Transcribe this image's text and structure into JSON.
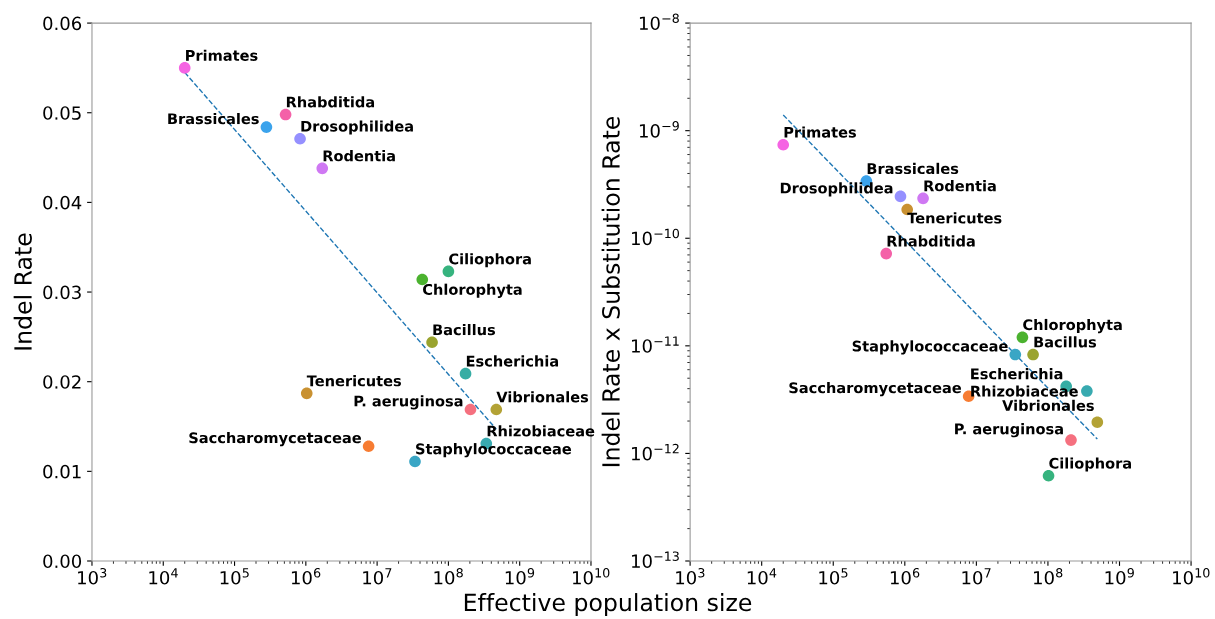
{
  "chart_data": [
    {
      "type": "scatter",
      "xlabel": "Effective population size",
      "ylabel": "Indel Rate",
      "log": "x",
      "grid": false,
      "marker": "circle",
      "xlim": [
        1000,
        10000000000
      ],
      "xticks": [
        {
          "value": 1000,
          "label": "10$^{3}$"
        },
        {
          "value": 10000,
          "label": "10$^{4}$"
        },
        {
          "value": 100000,
          "label": "10$^{5}$"
        },
        {
          "value": 1000000,
          "label": "10$^{6}$"
        },
        {
          "value": 10000000,
          "label": "10$^{7}$"
        },
        {
          "value": 100000000,
          "label": "10$^{8}$"
        },
        {
          "value": 1000000000,
          "label": "10$^{9}$"
        },
        {
          "value": 10000000000,
          "label": "10$^{10}$"
        }
      ],
      "ylim": [
        0,
        0.06
      ],
      "yticks": [
        {
          "value": 0,
          "label": "0.00"
        },
        {
          "value": 0.01,
          "label": "0.01"
        },
        {
          "value": 0.02,
          "label": "0.02"
        },
        {
          "value": 0.03,
          "label": "0.03"
        },
        {
          "value": 0.04,
          "label": "0.04"
        },
        {
          "value": 0.05,
          "label": "0.05"
        },
        {
          "value": 0.06,
          "label": "0.06"
        }
      ],
      "series": [
        {
          "name": "Primates",
          "color": "#f564e3",
          "x": [
            20000
          ],
          "values": [
            0.055
          ]
        },
        {
          "name": "Brassicales",
          "color": "#3ba3ec",
          "x": [
            280000
          ],
          "values": [
            0.0484
          ]
        },
        {
          "name": "Rhabditida",
          "color": "#f461a8",
          "x": [
            520000
          ],
          "values": [
            0.0498
          ]
        },
        {
          "name": "Drosophilidea",
          "color": "#9590ff",
          "x": [
            830000
          ],
          "values": [
            0.0471
          ]
        },
        {
          "name": "Rodentia",
          "color": "#cf78f3",
          "x": [
            1700000
          ],
          "values": [
            0.0438
          ]
        },
        {
          "name": "Ciliophora",
          "color": "#36b37e",
          "x": [
            100000000
          ],
          "values": [
            0.0323
          ]
        },
        {
          "name": "Chlorophyta",
          "color": "#4bb22f",
          "x": [
            43000000
          ],
          "values": [
            0.0314
          ]
        },
        {
          "name": "Bacillus",
          "color": "#9aa42f",
          "x": [
            59000000
          ],
          "values": [
            0.0244
          ]
        },
        {
          "name": "Escherichia",
          "color": "#36ada4",
          "x": [
            174000000
          ],
          "values": [
            0.0209
          ]
        },
        {
          "name": "Tenericutes",
          "color": "#c99131",
          "x": [
            1030000
          ],
          "values": [
            0.0187
          ]
        },
        {
          "name": "P. aeruginosa",
          "color": "#f5707f",
          "x": [
            204000000
          ],
          "values": [
            0.0169
          ]
        },
        {
          "name": "Vibrionales",
          "color": "#b3a235",
          "x": [
            470000000
          ],
          "values": [
            0.0169
          ]
        },
        {
          "name": "Saccharomycetaceae",
          "color": "#f77c32",
          "x": [
            7600000
          ],
          "values": [
            0.0128
          ]
        },
        {
          "name": "Rhizobiaceae",
          "color": "#38aab0",
          "x": [
            340000000
          ],
          "values": [
            0.0131
          ]
        },
        {
          "name": "Staphylococcaceae",
          "color": "#3aa6c5",
          "x": [
            34000000
          ],
          "values": [
            0.0111
          ]
        },
        {
          "type": "line",
          "color": "#1f77b4",
          "line_style": "dashed",
          "marker": "none",
          "x": [
            20000,
            470000000
          ],
          "values": [
            0.0545,
            0.0147
          ]
        }
      ]
    },
    {
      "type": "scatter",
      "ylabel": "Indel Rate x Substitution Rate",
      "log": "xy",
      "grid": false,
      "marker": "circle",
      "xlim": [
        1000,
        10000000000
      ],
      "xticks": [
        {
          "value": 1000,
          "label": "10$^{3}$"
        },
        {
          "value": 10000,
          "label": "10$^{4}$"
        },
        {
          "value": 100000,
          "label": "10$^{5}$"
        },
        {
          "value": 1000000,
          "label": "10$^{6}$"
        },
        {
          "value": 10000000,
          "label": "10$^{7}$"
        },
        {
          "value": 100000000,
          "label": "10$^{8}$"
        },
        {
          "value": 1000000000,
          "label": "10$^{9}$"
        },
        {
          "value": 10000000000,
          "label": "10$^{10}$"
        }
      ],
      "ylim": [
        1e-13,
        1e-08
      ],
      "yticks": [
        {
          "value": 1e-13,
          "label": "10$^{−13}$"
        },
        {
          "value": 1e-12,
          "label": "10$^{−12}$"
        },
        {
          "value": 1e-11,
          "label": "10$^{−11}$"
        },
        {
          "value": 1e-10,
          "label": "10$^{−10}$"
        },
        {
          "value": 1e-09,
          "label": "10$^{−9}$"
        },
        {
          "value": 1e-08,
          "label": "10$^{−8}$"
        }
      ],
      "series": [
        {
          "name": "Primates",
          "color": "#f564e3",
          "x": [
            20000
          ],
          "values": [
            7.4e-10
          ]
        },
        {
          "name": "Brassicales",
          "color": "#3ba3ec",
          "x": [
            290000
          ],
          "values": [
            3.4e-10
          ]
        },
        {
          "name": "Rhabditida",
          "color": "#f461a8",
          "x": [
            550000
          ],
          "values": [
            7.2e-11
          ]
        },
        {
          "name": "Drosophilidea",
          "color": "#9590ff",
          "x": [
            870000
          ],
          "values": [
            2.45e-10
          ]
        },
        {
          "name": "Rodentia",
          "color": "#cf78f3",
          "x": [
            1800000
          ],
          "values": [
            2.35e-10
          ]
        },
        {
          "name": "Ciliophora",
          "color": "#36b37e",
          "x": [
            102000000
          ],
          "values": [
            6.2e-13
          ]
        },
        {
          "name": "Chlorophyta",
          "color": "#4bb22f",
          "x": [
            44000000
          ],
          "values": [
            1.2e-11
          ]
        },
        {
          "name": "Bacillus",
          "color": "#9aa42f",
          "x": [
            62000000
          ],
          "values": [
            8.3e-12
          ]
        },
        {
          "name": "Escherichia",
          "color": "#36ada4",
          "x": [
            180000000
          ],
          "values": [
            4.2e-12
          ]
        },
        {
          "name": "Tenericutes",
          "color": "#c99131",
          "x": [
            1080000
          ],
          "values": [
            1.85e-10
          ]
        },
        {
          "name": "P. aeruginosa",
          "color": "#f5707f",
          "x": [
            210000000
          ],
          "values": [
            1.33e-12
          ]
        },
        {
          "name": "Vibrionales",
          "color": "#b3a235",
          "x": [
            490000000
          ],
          "values": [
            1.95e-12
          ]
        },
        {
          "name": "Saccharomycetaceae",
          "color": "#f77c32",
          "x": [
            7800000
          ],
          "values": [
            3.4e-12
          ]
        },
        {
          "name": "Rhizobiaceae",
          "color": "#38aab0",
          "x": [
            350000000
          ],
          "values": [
            3.8e-12
          ]
        },
        {
          "name": "Staphylococcaceae",
          "color": "#3aa6c5",
          "x": [
            35000000
          ],
          "values": [
            8.3e-12
          ]
        },
        {
          "type": "line",
          "color": "#1f77b4",
          "line_style": "dashed",
          "marker": "none",
          "x": [
            20000,
            490000000
          ],
          "values": [
            1.4e-09,
            1.36e-12
          ]
        }
      ]
    }
  ]
}
